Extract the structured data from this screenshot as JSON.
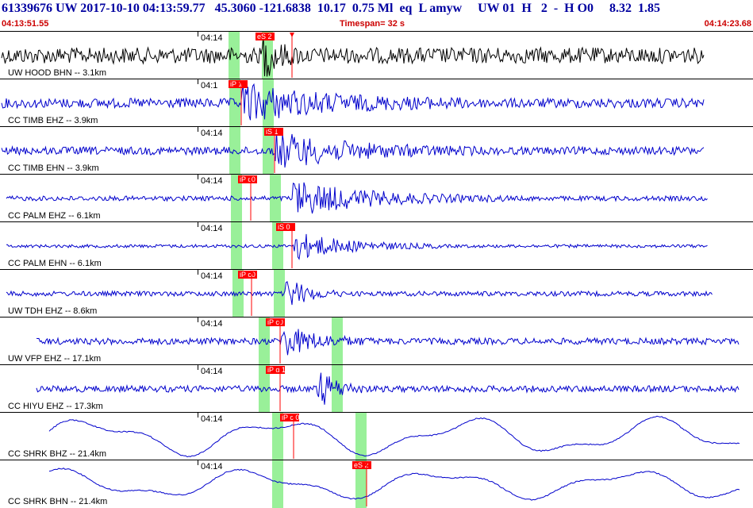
{
  "header": {
    "title": "61339676 UW 2017-10-10 04:13:59.77   45.3060 -121.6838  10.17  0.75 Ml  eq  L amyw     UW 01  H   2  -  H O0     8.32  1.85",
    "start_time": "04:13:51.55",
    "timespan": "Timespan=  32 s",
    "end_time": "04:14:23.68"
  },
  "panels": [
    {
      "label": "UW HOOD BHN -- 3.1km",
      "time": "04:14",
      "picks": [
        {
          "text": "eS 2",
          "x": 322
        }
      ],
      "trace": "black",
      "amp": 10,
      "burst": [
        330,
        380
      ],
      "bamp": 28,
      "arrival": 368,
      "green": [
        295,
        337
      ],
      "start": 2,
      "end": 887,
      "wave": "noise"
    },
    {
      "label": "CC TIMB EHZ -- 3.9km",
      "time": "04:1",
      "picks": [
        {
          "text": "iP 1",
          "x": 288
        }
      ],
      "trace": "blue",
      "amp": 6,
      "burst": [
        305,
        600
      ],
      "bamp": 22,
      "arrival": 304,
      "green": [
        296,
        338
      ],
      "start": 2,
      "end": 887,
      "wave": "noise"
    },
    {
      "label": "CC TIMB EHN -- 3.9km",
      "time": "04:14",
      "picks": [
        {
          "text": "iS 1",
          "x": 333
        }
      ],
      "trace": "blue",
      "amp": 5,
      "burst": [
        345,
        600
      ],
      "bamp": 22,
      "arrival": 346,
      "green": [
        296,
        338
      ],
      "start": 2,
      "end": 887,
      "wave": "noise"
    },
    {
      "label": "CC PALM EHZ -- 6.1km",
      "time": "04:14",
      "picks": [
        {
          "text": "iP c0",
          "x": 300
        }
      ],
      "trace": "blue",
      "amp": 3,
      "burst": [
        368,
        640
      ],
      "bamp": 22,
      "arrival": 316,
      "green": [
        298,
        347
      ],
      "start": 8,
      "end": 892,
      "wave": "noise"
    },
    {
      "label": "CC PALM EHN -- 6.1km",
      "time": "04:14",
      "picks": [
        {
          "text": "iS 0",
          "x": 348
        }
      ],
      "trace": "blue",
      "amp": 2,
      "burst": [
        368,
        560
      ],
      "bamp": 18,
      "arrival": 368,
      "green": [
        298,
        350
      ],
      "start": 8,
      "end": 892,
      "wave": "noise"
    },
    {
      "label": "UW TDH EHZ -- 8.6km",
      "time": "04:14",
      "picks": [
        {
          "text": "iP c0",
          "x": 300
        }
      ],
      "trace": "blue",
      "amp": 3,
      "burst": [
        360,
        430
      ],
      "bamp": 22,
      "arrival": 317,
      "green": [
        300,
        352
      ],
      "start": 8,
      "end": 898,
      "wave": "noise"
    },
    {
      "label": "UW VFP EHZ -- 17.1km",
      "time": "04:14",
      "picks": [
        {
          "text": "iP c0",
          "x": 335
        }
      ],
      "trace": "blue",
      "amp": 4,
      "burst": [
        355,
        470
      ],
      "bamp": 20,
      "arrival": 353,
      "green": [
        333,
        425
      ],
      "start": 46,
      "end": 932,
      "wave": "noise"
    },
    {
      "label": "CC HIYU EHZ -- 17.3km",
      "time": "04:14",
      "picks": [
        {
          "text": "iP d 1",
          "x": 335
        }
      ],
      "trace": "blue",
      "amp": 4,
      "burst": [
        400,
        465
      ],
      "bamp": 26,
      "arrival": 353,
      "green": [
        333,
        425
      ],
      "start": 46,
      "end": 932,
      "wave": "noise"
    },
    {
      "label": "CC SHRK BHZ -- 21.4km",
      "time": "04:14",
      "picks": [
        {
          "text": "iP c 0",
          "x": 353
        }
      ],
      "trace": "blue",
      "amp": 18,
      "burst": [
        0,
        0
      ],
      "bamp": 0,
      "arrival": 370,
      "green": [
        350,
        455
      ],
      "start": 62,
      "end": 932,
      "wave": "slow"
    },
    {
      "label": "CC SHRK BHN -- 21.4km",
      "time": "04:14",
      "picks": [
        {
          "text": "eS 2",
          "x": 444
        }
      ],
      "trace": "blue",
      "amp": 14,
      "burst": [
        0,
        0
      ],
      "bamp": 0,
      "arrival": 462,
      "green": [
        350,
        455
      ],
      "start": 62,
      "end": 932,
      "wave": "slow"
    }
  ],
  "colors": {
    "trace_black": "#000000",
    "trace_blue": "#0000cc",
    "pick": "#ff0000",
    "green_band": "#99f099",
    "header_text": "#0000a0",
    "header_red": "#cc0000"
  }
}
